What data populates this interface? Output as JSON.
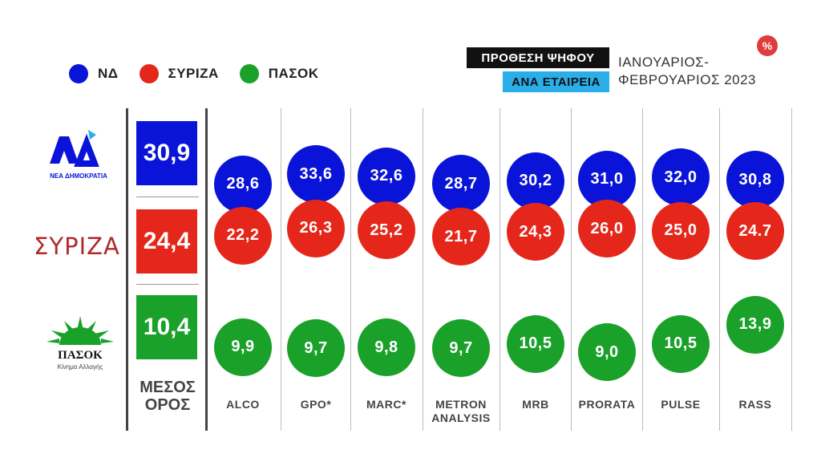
{
  "legend": [
    {
      "label": "ΝΔ",
      "color": "#0a14d8"
    },
    {
      "label": "ΣΥΡΙΖΑ",
      "color": "#e5271b"
    },
    {
      "label": "ΠΑΣΟΚ",
      "color": "#1aa12a"
    }
  ],
  "header": {
    "title": "ΠΡΟΘΕΣΗ ΨΗΦΟΥ",
    "subtitle": "ΑΝΑ ΕΤΑΙΡΕΙΑ",
    "period_line1": "ΙΑΝΟΥΑΡΙΟΣ-",
    "period_line2": "ΦΕΒΡΟΥΑΡΙΟΣ 2023",
    "unit_badge": "%"
  },
  "logos": {
    "nd": {
      "text": "ΝΕΑ ΔΗΜΟΚΡΑΤΙΑ"
    },
    "syriza": {
      "text": "ΣΥΡΙΖΑ"
    },
    "pasok": {
      "text": "ΠΑΣΟΚ",
      "subtext": "Κίνημα Αλλαγής"
    }
  },
  "average": {
    "label_line1": "ΜΕΣΟΣ",
    "label_line2": "ΟΡΟΣ",
    "values": [
      "30,9",
      "24,4",
      "10,4"
    ]
  },
  "chart_data": {
    "type": "table",
    "categories": [
      "ALCO",
      "GPO*",
      "MARC*",
      "METRON ANALYSIS",
      "MRB",
      "PRORATA",
      "PULSE",
      "RASS"
    ],
    "series": [
      {
        "name": "ΝΔ",
        "values": [
          28.6,
          33.6,
          32.6,
          28.7,
          30.2,
          31.0,
          32.0,
          30.8
        ],
        "labels": [
          "28,6",
          "33,6",
          "32,6",
          "28,7",
          "30,2",
          "31,0",
          "32,0",
          "30,8"
        ]
      },
      {
        "name": "ΣΥΡΙΖΑ",
        "values": [
          22.2,
          26.3,
          25.2,
          21.7,
          24.3,
          26.0,
          25.0,
          24.7
        ],
        "labels": [
          "22,2",
          "26,3",
          "25,2",
          "21,7",
          "24,3",
          "26,0",
          "25,0",
          "24.7"
        ]
      },
      {
        "name": "ΠΑΣΟΚ",
        "values": [
          9.9,
          9.7,
          9.8,
          9.7,
          10.5,
          9.0,
          10.5,
          13.9
        ],
        "labels": [
          "9,9",
          "9,7",
          "9,8",
          "9,7",
          "10,5",
          "9,0",
          "10,5",
          "13,9"
        ]
      }
    ],
    "averages": [
      30.9,
      24.4,
      10.4
    ],
    "unit": "%"
  }
}
